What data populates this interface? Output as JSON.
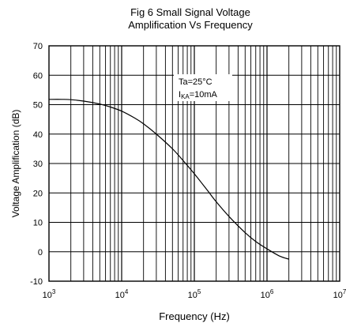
{
  "chart_data": {
    "type": "line",
    "title_lines": [
      "Fig 6 Small Signal Voltage",
      "Amplification Vs Frequency"
    ],
    "xlabel": "Frequency (Hz)",
    "ylabel": "Voltage Amplification (dB)",
    "x_scale": "log",
    "xlim": [
      1000,
      10000000
    ],
    "ylim": [
      -10,
      70
    ],
    "x_ticks": [
      {
        "base": "10",
        "exp": "3"
      },
      {
        "base": "10",
        "exp": "4"
      },
      {
        "base": "10",
        "exp": "5"
      },
      {
        "base": "10",
        "exp": "6"
      },
      {
        "base": "10",
        "exp": "7"
      }
    ],
    "y_ticks": [
      "70",
      "60",
      "50",
      "40",
      "30",
      "20",
      "10",
      "0",
      "-10"
    ],
    "grid": true,
    "annotations": {
      "line1": "Ta=25°C",
      "line2_main": "I",
      "line2_sub": "KA",
      "line2_tail": "=10mA"
    },
    "series": [
      {
        "x": [
          1000,
          1500,
          2000,
          3000,
          5000,
          7000,
          10000,
          15000,
          20000,
          30000,
          50000,
          70000,
          100000,
          150000,
          200000,
          300000,
          500000,
          700000,
          1000000,
          1500000,
          2000000
        ],
        "y": [
          51.8,
          51.8,
          51.7,
          51.2,
          50.2,
          49.2,
          47.8,
          45.5,
          43.5,
          40.0,
          35.0,
          31.0,
          26.5,
          21.0,
          17.0,
          12.0,
          6.5,
          3.5,
          1.0,
          -1.5,
          -2.5
        ]
      }
    ]
  }
}
